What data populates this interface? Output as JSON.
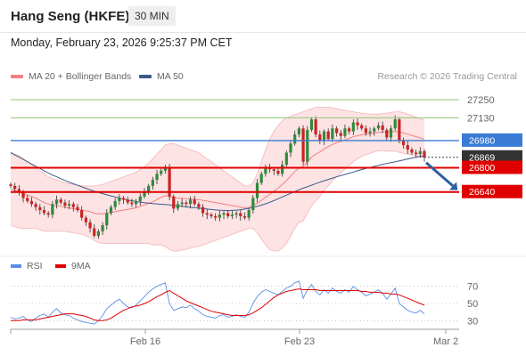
{
  "header": {
    "title": "Hang Seng (HKFE)",
    "timeframe": "30 MIN"
  },
  "datetime": "Monday, February 23, 2026 9:25:37 PM CET",
  "legend": {
    "bb": "MA 20 + Bollinger Bands",
    "ma50": "MA 50",
    "rsi": "RSI",
    "ma9": "9MA",
    "copyright": "Research © 2026 Trading Central"
  },
  "colors": {
    "bb": "#f08080",
    "bb_fill": "#fde3e3",
    "ma50": "#3a5a8c",
    "resistance": "#8cc97a",
    "blue_level": "#3a7bd5",
    "red_level": "#e00000",
    "last": "#333333",
    "rsi": "#5b8ee6",
    "rsi_ma": "#e00000",
    "up": "#2e8b3a",
    "down": "#cc2222",
    "arrow": "#2f5f9f"
  },
  "chart_data": [
    {
      "type": "candlestick",
      "title": "Hang Seng (HKFE)",
      "ylim": [
        26250,
        27350
      ],
      "x_ticks": [
        "Feb 16",
        "Feb 23",
        "Mar 2"
      ],
      "levels": [
        {
          "value": 27250,
          "label": "27250",
          "kind": "resistance"
        },
        {
          "value": 27130,
          "label": "27130",
          "kind": "resistance"
        },
        {
          "value": 26980,
          "label": "26980",
          "kind": "pivot"
        },
        {
          "value": 26869,
          "label": "26869",
          "kind": "last"
        },
        {
          "value": 26800,
          "label": "26800",
          "kind": "support"
        },
        {
          "value": 26640,
          "label": "26640",
          "kind": "support"
        }
      ],
      "last_price": 26869,
      "close": [
        26680,
        26660,
        26640,
        26600,
        26580,
        26560,
        26540,
        26520,
        26500,
        26490,
        26560,
        26590,
        26570,
        26550,
        26560,
        26540,
        26520,
        26470,
        26440,
        26400,
        26350,
        26380,
        26420,
        26500,
        26540,
        26580,
        26600,
        26590,
        26570,
        26560,
        26580,
        26610,
        26640,
        26680,
        26720,
        26760,
        26780,
        26800,
        26610,
        26530,
        26560,
        26570,
        26560,
        26590,
        26560,
        26540,
        26500,
        26490,
        26480,
        26470,
        26490,
        26500,
        26480,
        26490,
        26500,
        26480,
        26470,
        26520,
        26600,
        26700,
        26760,
        26800,
        26790,
        26780,
        26760,
        26820,
        26900,
        26960,
        27020,
        27060,
        26840,
        27050,
        27120,
        27020,
        26980,
        27040,
        26990,
        27060,
        27030,
        27010,
        27060,
        27040,
        27100,
        27080,
        27060,
        27030,
        27040,
        27060,
        27080,
        27050,
        27000,
        27060,
        27120,
        26980,
        26950,
        26920,
        26900,
        26890,
        26910,
        26869
      ],
      "ma20": [
        26660,
        26650,
        26640,
        26630,
        26620,
        26610,
        26600,
        26585,
        26570,
        26560,
        26555,
        26550,
        26545,
        26540,
        26535,
        26530,
        26525,
        26520,
        26515,
        26510,
        26500,
        26495,
        26495,
        26500,
        26505,
        26510,
        26515,
        26520,
        26525,
        26530,
        26535,
        26545,
        26555,
        26565,
        26575,
        26590,
        26605,
        26615,
        26610,
        26605,
        26600,
        26598,
        26596,
        26594,
        26592,
        26590,
        26585,
        26580,
        26575,
        26570,
        26565,
        26560,
        26555,
        26550,
        26545,
        26540,
        26535,
        26540,
        26550,
        26565,
        26585,
        26605,
        26625,
        26645,
        26665,
        26690,
        26715,
        26745,
        26775,
        26800,
        26810,
        26840,
        26870,
        26890,
        26905,
        26925,
        26940,
        26955,
        26965,
        26975,
        26985,
        26995,
        27005,
        27012,
        27018,
        27022,
        27026,
        27030,
        27034,
        27036,
        27036,
        27038,
        27040,
        27036,
        27030,
        27022,
        27014,
        27006,
        26998,
        26990
      ],
      "ma50": [
        26900,
        26885,
        26870,
        26855,
        26840,
        26825,
        26810,
        26795,
        26780,
        26765,
        26752,
        26740,
        26728,
        26716,
        26705,
        26694,
        26684,
        26674,
        26664,
        26654,
        26645,
        26637,
        26629,
        26621,
        26614,
        26607,
        26600,
        26593,
        26587,
        26582,
        26577,
        26573,
        26569,
        26566,
        26563,
        26561,
        26559,
        26557,
        26554,
        26551,
        26548,
        26545,
        26542,
        26539,
        26536,
        26533,
        26530,
        26527,
        26524,
        26521,
        26519,
        26518,
        26517,
        26518,
        26520,
        26523,
        26527,
        26532,
        26538,
        26545,
        26553,
        26562,
        26572,
        26583,
        26595,
        26607,
        26619,
        26631,
        26643,
        26655,
        26665,
        26675,
        26685,
        26695,
        26705,
        26714,
        26723,
        26732,
        26740,
        26748,
        26756,
        26764,
        26772,
        26780,
        26788,
        26795,
        26802,
        26809,
        26816,
        26822,
        26828,
        26834,
        26840,
        26846,
        26852,
        26858,
        26864,
        26869,
        26874,
        26879
      ],
      "bb_upper": [
        26900,
        26890,
        26880,
        26860,
        26840,
        26820,
        26800,
        26780,
        26760,
        26740,
        26730,
        26720,
        26710,
        26700,
        26695,
        26690,
        26685,
        26680,
        26680,
        26680,
        26680,
        26685,
        26690,
        26700,
        26710,
        26720,
        26730,
        26740,
        26750,
        26760,
        26770,
        26790,
        26810,
        26830,
        26860,
        26890,
        26920,
        26950,
        26960,
        26960,
        26950,
        26940,
        26930,
        26920,
        26910,
        26900,
        26880,
        26860,
        26840,
        26820,
        26800,
        26780,
        26760,
        26740,
        26720,
        26700,
        26680,
        26680,
        26700,
        26760,
        26840,
        26920,
        26990,
        27040,
        27080,
        27110,
        27130,
        27140,
        27150,
        27160,
        27170,
        27180,
        27190,
        27200,
        27200,
        27200,
        27200,
        27195,
        27190,
        27185,
        27180,
        27175,
        27170,
        27165,
        27160,
        27158,
        27156,
        27155,
        27155,
        27158,
        27162,
        27166,
        27170,
        27170,
        27165,
        27155,
        27145,
        27135,
        27125,
        27115
      ],
      "bb_lower": [
        26420,
        26410,
        26400,
        26400,
        26400,
        26400,
        26400,
        26390,
        26380,
        26380,
        26380,
        26380,
        26380,
        26380,
        26375,
        26370,
        26365,
        26360,
        26350,
        26340,
        26320,
        26305,
        26300,
        26300,
        26300,
        26300,
        26300,
        26300,
        26300,
        26300,
        26300,
        26300,
        26300,
        26300,
        26290,
        26290,
        26290,
        26280,
        26260,
        26250,
        26250,
        26256,
        26262,
        26268,
        26274,
        26280,
        26290,
        26300,
        26310,
        26320,
        26330,
        26340,
        26350,
        26360,
        26370,
        26380,
        26390,
        26400,
        26400,
        26370,
        26330,
        26290,
        26260,
        26250,
        26250,
        26270,
        26300,
        26350,
        26400,
        26440,
        26450,
        26500,
        26550,
        26580,
        26610,
        26650,
        26680,
        26715,
        26740,
        26765,
        26790,
        26815,
        26840,
        26859,
        26876,
        26886,
        26896,
        26905,
        26913,
        26914,
        26910,
        26910,
        26910,
        26902,
        26895,
        26889,
        26883,
        26877,
        26871,
        26865
      ]
    },
    {
      "type": "line",
      "title": "RSI",
      "ylim": [
        20,
        80
      ],
      "y_ticks": [
        70,
        50,
        30
      ],
      "series": [
        {
          "name": "RSI",
          "values": [
            34,
            32,
            33,
            35,
            31,
            29,
            33,
            36,
            38,
            34,
            40,
            44,
            39,
            37,
            36,
            33,
            31,
            29,
            28,
            27,
            26,
            30,
            36,
            44,
            48,
            52,
            55,
            50,
            46,
            45,
            48,
            53,
            58,
            63,
            67,
            70,
            72,
            74,
            50,
            42,
            44,
            46,
            45,
            48,
            44,
            41,
            37,
            35,
            34,
            33,
            36,
            37,
            34,
            35,
            37,
            35,
            34,
            40,
            50,
            58,
            63,
            66,
            64,
            62,
            60,
            64,
            68,
            70,
            74,
            76,
            56,
            66,
            72,
            64,
            60,
            66,
            62,
            68,
            64,
            62,
            66,
            63,
            70,
            66,
            63,
            59,
            61,
            63,
            66,
            62,
            55,
            61,
            68,
            50,
            46,
            42,
            40,
            39,
            42,
            38
          ]
        },
        {
          "name": "9MA",
          "values": [
            30,
            30,
            30,
            31,
            31,
            31,
            31,
            32,
            33,
            34,
            35,
            36,
            37,
            38,
            38,
            38,
            37,
            36,
            35,
            33,
            31,
            30,
            30,
            31,
            33,
            36,
            39,
            42,
            44,
            46,
            47,
            48,
            50,
            52,
            55,
            58,
            60,
            63,
            65,
            62,
            59,
            56,
            53,
            51,
            49,
            47,
            45,
            43,
            41,
            40,
            39,
            38,
            37,
            36,
            36,
            36,
            36,
            37,
            39,
            42,
            45,
            49,
            53,
            57,
            60,
            62,
            64,
            65,
            66,
            67,
            66,
            66,
            66,
            66,
            65,
            65,
            65,
            65,
            65,
            65,
            65,
            65,
            65,
            65,
            64,
            64,
            63,
            63,
            63,
            62,
            62,
            61,
            61,
            60,
            58,
            56,
            54,
            52,
            50,
            48
          ]
        }
      ]
    }
  ]
}
